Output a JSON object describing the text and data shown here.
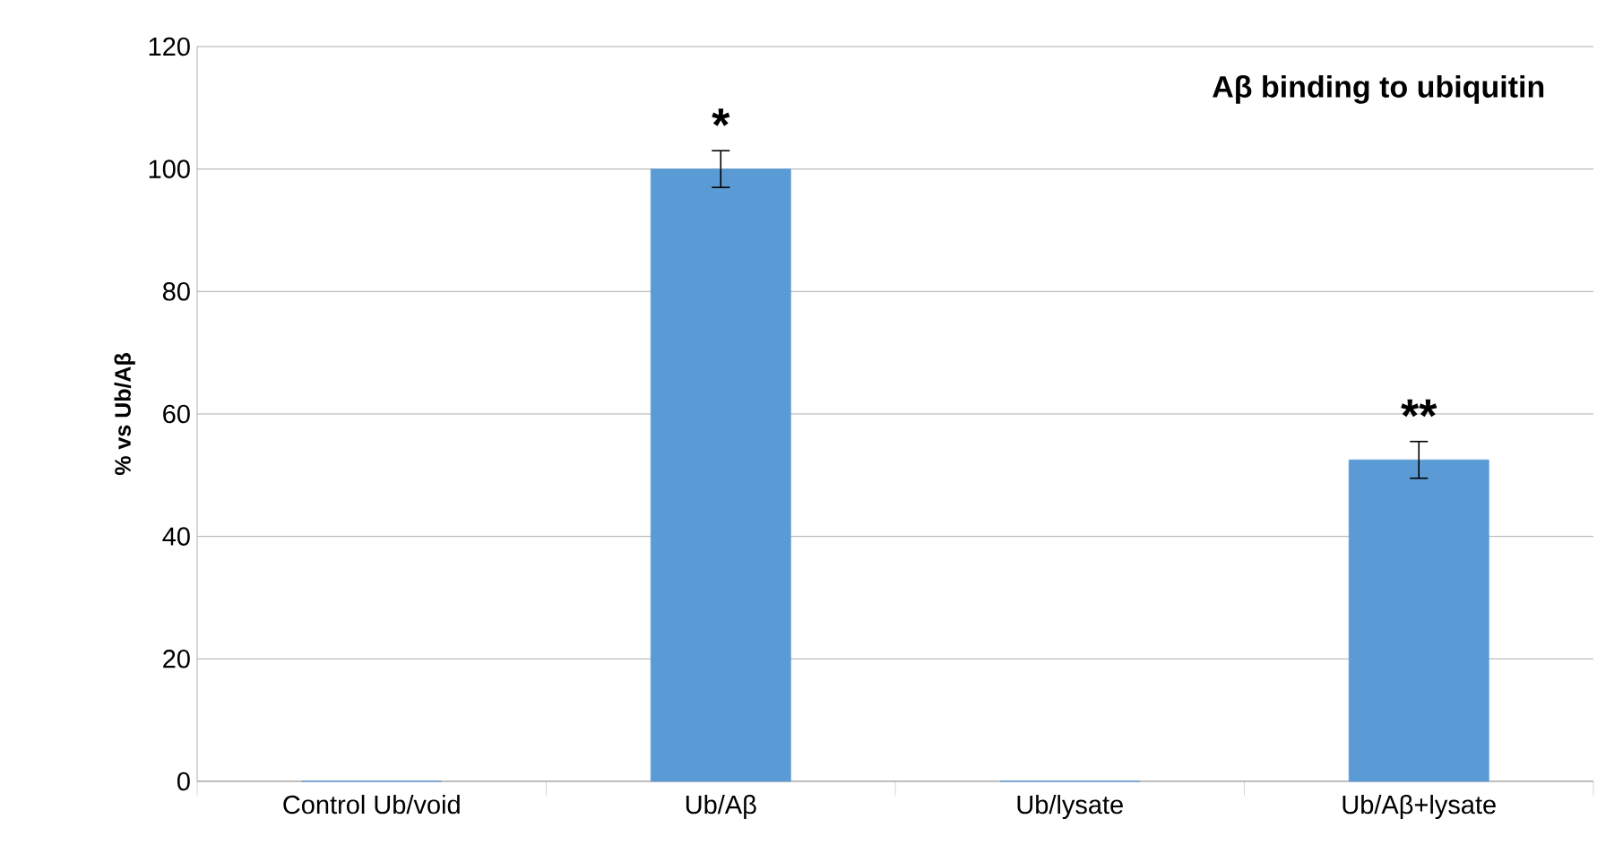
{
  "chart_data": {
    "type": "bar",
    "title": "**Aβ binding to ubiquitin**",
    "ylabel": "% vs Ub/Aβ",
    "categories": [
      "Control Ub/void",
      "Ub/Aβ",
      "Ub/lysate",
      "Ub/Aβ+lysate"
    ],
    "values": [
      0,
      100,
      0,
      52.5
    ],
    "errors": [
      null,
      3,
      null,
      3
    ],
    "color": "#5b9bd5",
    "ylim": [
      0,
      120
    ],
    "yticks": [
      0,
      20,
      40,
      60,
      80,
      100,
      120
    ],
    "grid": "y",
    "annotations": [
      "*",
      "**"
    ]
  }
}
